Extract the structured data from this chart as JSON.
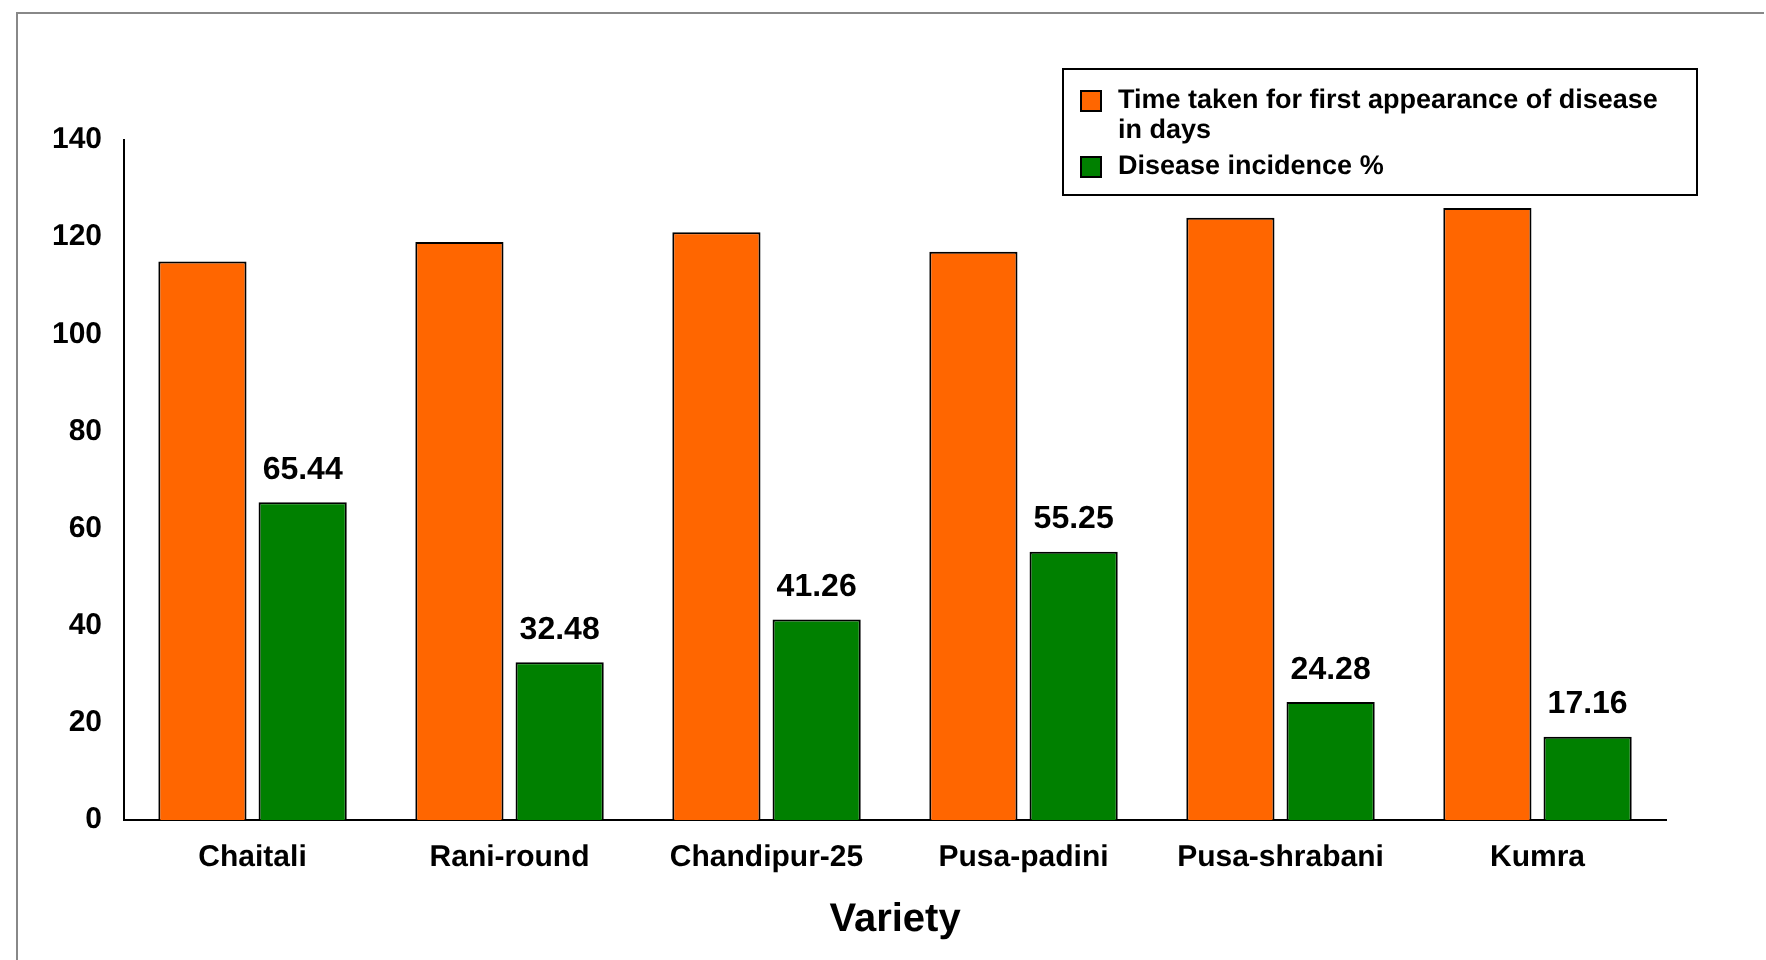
{
  "chart_data": {
    "type": "bar",
    "xlabel": "Variety",
    "categories": [
      "Chaitali",
      "Rani-round",
      "Chandipur-25",
      "Pusa-padini",
      "Pusa-shrabani",
      "Kumra"
    ],
    "series": [
      {
        "name": "Time taken for first appearance of disease in days",
        "color": "#ff6600",
        "values": [
          115,
          119,
          121,
          117,
          124,
          126
        ]
      },
      {
        "name": "Disease incidence %",
        "color": "#008000",
        "values": [
          65.44,
          32.48,
          41.26,
          55.25,
          24.28,
          17.16
        ],
        "value_labels": [
          "65.44",
          "32.48",
          "41.26",
          "55.25",
          "24.28",
          "17.16"
        ]
      }
    ],
    "ylim": [
      0,
      140
    ],
    "yticks": [
      0,
      20,
      40,
      60,
      80,
      100,
      120,
      140
    ],
    "grid": false,
    "legend": "top right"
  }
}
